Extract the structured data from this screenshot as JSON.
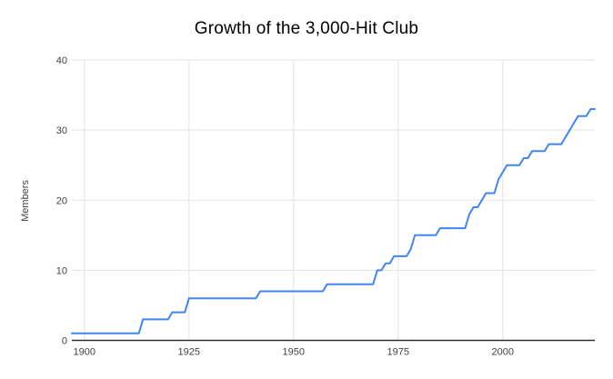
{
  "chart_data": {
    "type": "line",
    "title": "Growth of the 3,000-Hit Club",
    "xlabel": "",
    "ylabel": "Members",
    "x_domain": [
      1897,
      2022
    ],
    "ylim": [
      0,
      40
    ],
    "x_ticks": [
      1900,
      1925,
      1950,
      1975,
      2000
    ],
    "y_ticks": [
      0,
      10,
      20,
      30,
      40
    ],
    "grid": true,
    "legend": "none",
    "series": [
      {
        "name": "Members",
        "interpolation": "annual cumulative step; value holds flat between milestone years",
        "milestones": [
          [
            1897,
            1
          ],
          [
            1914,
            3
          ],
          [
            1921,
            4
          ],
          [
            1925,
            6
          ],
          [
            1942,
            7
          ],
          [
            1958,
            8
          ],
          [
            1970,
            10
          ],
          [
            1972,
            11
          ],
          [
            1974,
            12
          ],
          [
            1978,
            13
          ],
          [
            1979,
            15
          ],
          [
            1985,
            16
          ],
          [
            1992,
            18
          ],
          [
            1993,
            19
          ],
          [
            1995,
            20
          ],
          [
            1996,
            21
          ],
          [
            1999,
            23
          ],
          [
            2000,
            24
          ],
          [
            2001,
            25
          ],
          [
            2005,
            26
          ],
          [
            2007,
            27
          ],
          [
            2011,
            28
          ],
          [
            2015,
            29
          ],
          [
            2016,
            30
          ],
          [
            2017,
            31
          ],
          [
            2018,
            32
          ],
          [
            2021,
            33
          ]
        ]
      }
    ],
    "colors": {
      "line": "#4285f4",
      "grid": "#e3e3e3",
      "axis": "#333333",
      "tick_label": "#424242",
      "title": "#000000",
      "background": "#ffffff"
    }
  }
}
